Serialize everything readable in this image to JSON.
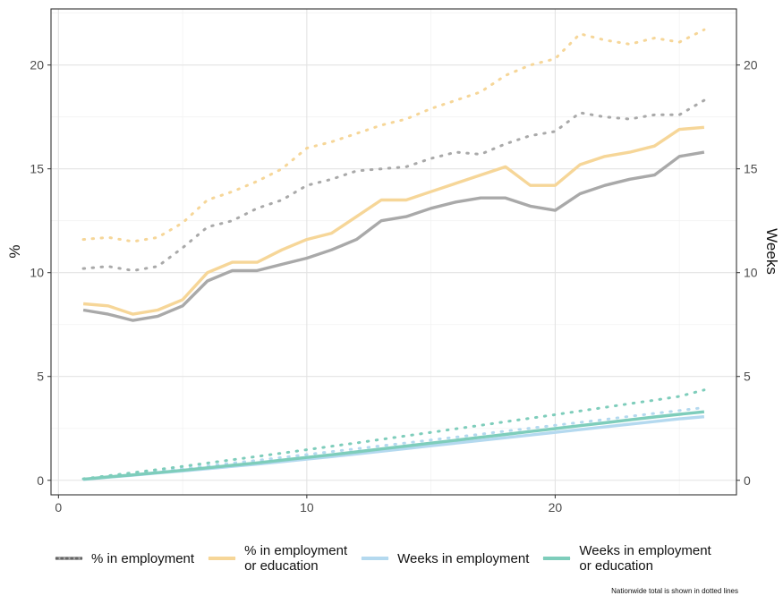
{
  "chart_data": {
    "type": "line",
    "title": "",
    "xlabel": "",
    "ylabel": "%",
    "y2label": "Weeks",
    "xlim": [
      -0.3,
      27.3
    ],
    "ylim": [
      -0.7,
      22.7
    ],
    "x_ticks": [
      0,
      10,
      20
    ],
    "y_ticks": [
      0,
      5,
      10,
      15,
      20
    ],
    "y2_ticks": [
      0,
      5,
      10,
      15,
      20
    ],
    "grid": true,
    "legend_position": "bottom",
    "note": "Nationwide total is shown in dotted lines",
    "x": [
      1,
      2,
      3,
      4,
      5,
      6,
      7,
      8,
      9,
      10,
      11,
      12,
      13,
      14,
      15,
      16,
      17,
      18,
      19,
      20,
      21,
      22,
      23,
      24,
      25,
      26
    ],
    "series": [
      {
        "name": "% in employment",
        "color": "#a9a9a9",
        "axis": "left",
        "values": [
          8.2,
          8.0,
          7.7,
          7.9,
          8.4,
          9.6,
          10.1,
          10.1,
          10.4,
          10.7,
          11.1,
          11.6,
          12.5,
          12.7,
          13.1,
          13.4,
          13.6,
          13.6,
          13.2,
          13.0,
          13.8,
          14.2,
          14.5,
          14.7,
          15.6,
          15.8
        ],
        "nationwide": [
          10.2,
          10.3,
          10.1,
          10.3,
          11.2,
          12.2,
          12.5,
          13.1,
          13.5,
          14.2,
          14.5,
          14.9,
          15.0,
          15.1,
          15.5,
          15.8,
          15.7,
          16.2,
          16.6,
          16.8,
          17.7,
          17.5,
          17.4,
          17.6,
          17.6,
          18.3
        ]
      },
      {
        "name": "% in employment\nor education",
        "color": "#f6d698",
        "axis": "left",
        "values": [
          8.5,
          8.4,
          8.0,
          8.2,
          8.7,
          10.0,
          10.5,
          10.5,
          11.1,
          11.6,
          11.9,
          12.7,
          13.5,
          13.5,
          13.9,
          14.3,
          14.7,
          15.1,
          14.2,
          14.2,
          15.2,
          15.6,
          15.8,
          16.1,
          16.9,
          17.0
        ],
        "nationwide": [
          11.6,
          11.7,
          11.5,
          11.7,
          12.4,
          13.5,
          13.9,
          14.4,
          15.0,
          16.0,
          16.3,
          16.7,
          17.1,
          17.4,
          17.9,
          18.3,
          18.7,
          19.5,
          20.0,
          20.3,
          21.5,
          21.2,
          21.0,
          21.3,
          21.1,
          21.7
        ]
      },
      {
        "name": "Weeks in employment",
        "color": "#b4d9ef",
        "axis": "right",
        "values": [
          0.04,
          0.15,
          0.25,
          0.35,
          0.45,
          0.56,
          0.67,
          0.78,
          0.9,
          1.02,
          1.14,
          1.27,
          1.4,
          1.53,
          1.66,
          1.79,
          1.92,
          2.05,
          2.18,
          2.31,
          2.44,
          2.57,
          2.7,
          2.83,
          2.96,
          3.06
        ],
        "nationwide": [
          0.06,
          0.19,
          0.31,
          0.44,
          0.56,
          0.69,
          0.83,
          0.96,
          1.1,
          1.24,
          1.38,
          1.52,
          1.66,
          1.8,
          1.94,
          2.08,
          2.22,
          2.37,
          2.51,
          2.65,
          2.79,
          2.93,
          3.08,
          3.22,
          3.36,
          3.5
        ]
      },
      {
        "name": "Weeks in employment\nor education",
        "color": "#7ecdbb",
        "axis": "right",
        "values": [
          0.05,
          0.16,
          0.26,
          0.37,
          0.48,
          0.6,
          0.72,
          0.84,
          0.97,
          1.1,
          1.23,
          1.37,
          1.51,
          1.65,
          1.79,
          1.93,
          2.07,
          2.21,
          2.35,
          2.49,
          2.63,
          2.77,
          2.91,
          3.05,
          3.18,
          3.3
        ],
        "nationwide": [
          0.07,
          0.22,
          0.37,
          0.52,
          0.67,
          0.83,
          0.99,
          1.15,
          1.31,
          1.47,
          1.64,
          1.8,
          1.97,
          2.14,
          2.31,
          2.48,
          2.65,
          2.82,
          2.99,
          3.16,
          3.34,
          3.51,
          3.69,
          3.86,
          4.04,
          4.35
        ]
      }
    ]
  }
}
